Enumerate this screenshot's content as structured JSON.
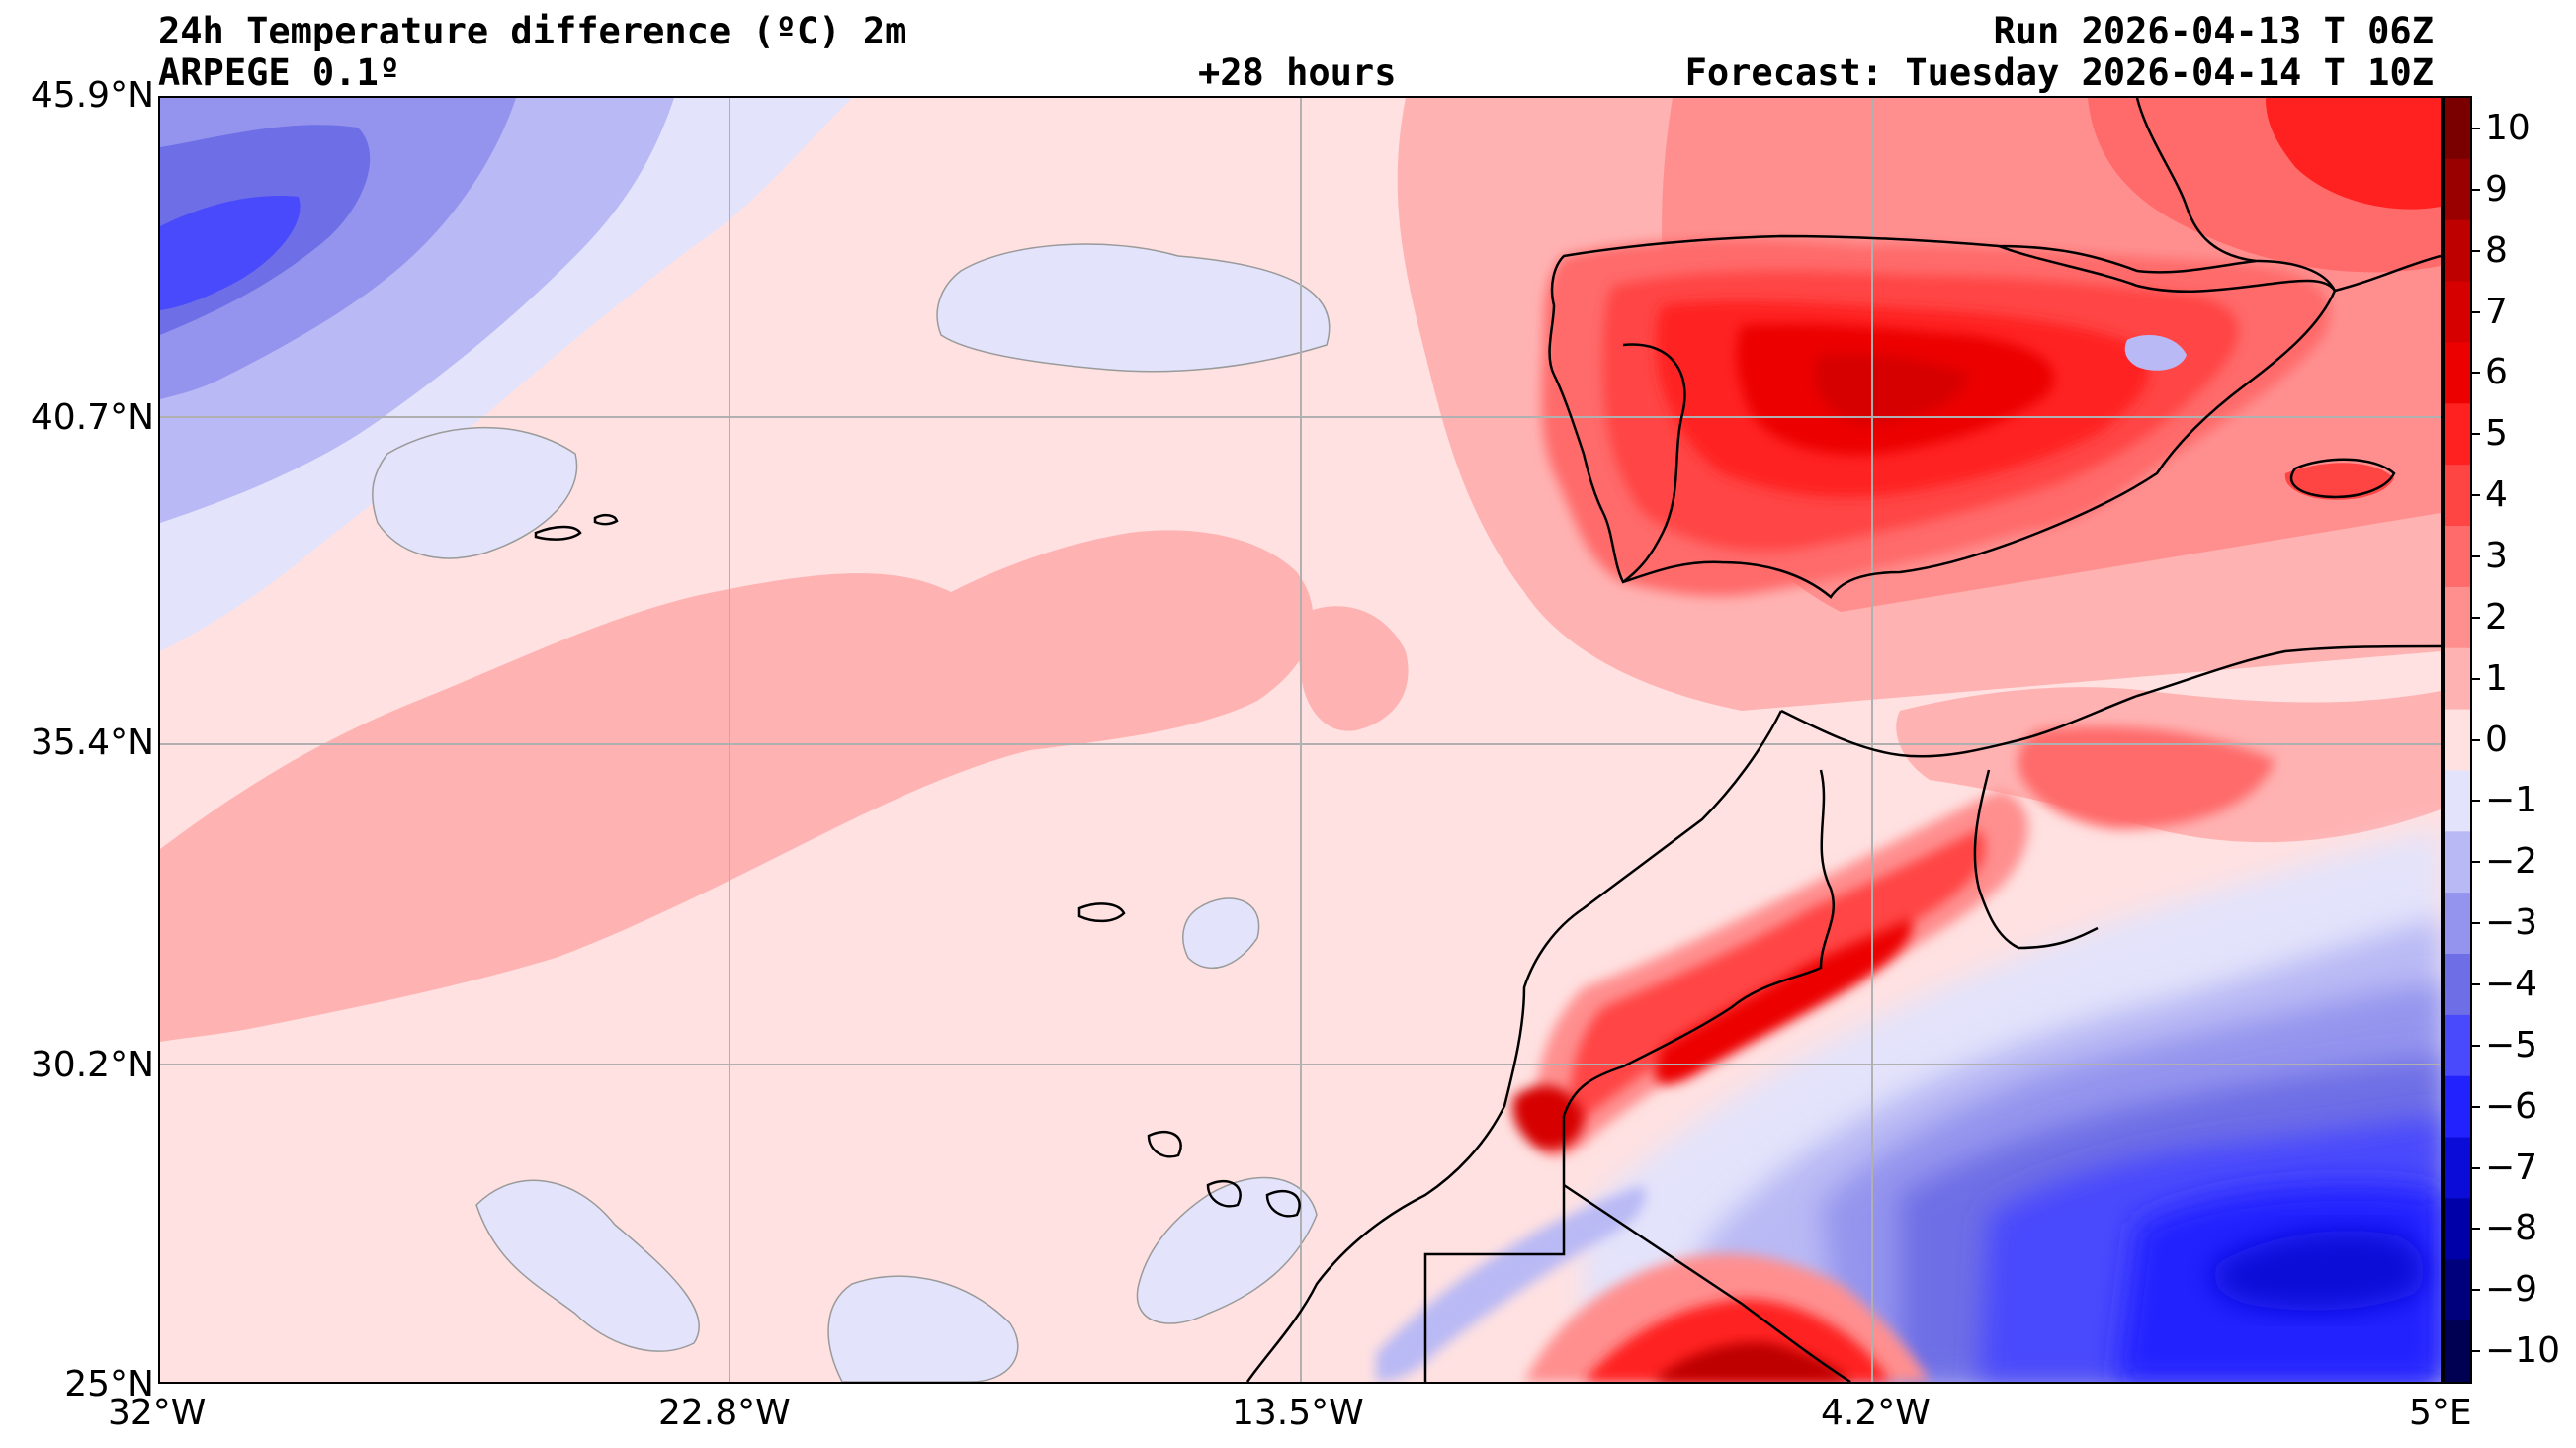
{
  "header": {
    "title": "24h Temperature difference (ºC) 2m",
    "model": "ARPEGE 0.1º",
    "lead_time": "+28 hours",
    "run": "Run 2026-04-13 T 06Z",
    "forecast": "Forecast: Tuesday 2026-04-14 T 10Z"
  },
  "axes": {
    "lat_labels": [
      "45.9°N",
      "40.7°N",
      "35.4°N",
      "30.2°N",
      "25°N"
    ],
    "lon_labels": [
      "32°W",
      "22.8°W",
      "13.5°W",
      "4.2°W",
      "5°E"
    ]
  },
  "colorbar": {
    "ticks": [
      "10",
      "9",
      "8",
      "7",
      "6",
      "5",
      "4",
      "3",
      "2",
      "1",
      "0",
      "−1",
      "−2",
      "−3",
      "−4",
      "−5",
      "−6",
      "−7",
      "−8",
      "−9",
      "−10"
    ],
    "levels_top_to_bottom": [
      "#7a0000",
      "#9a0000",
      "#be0000",
      "#d60000",
      "#ec0000",
      "#ff2020",
      "#ff4444",
      "#ff6a6a",
      "#ff8f8f",
      "#ffb2b2",
      "#ffe1e1",
      "#e3e3fb",
      "#b9b9f5",
      "#9494ee",
      "#6e6ee6",
      "#4a4afd",
      "#2222ff",
      "#0c0cd8",
      "#0000a8",
      "#00007c",
      "#000052"
    ]
  },
  "colors": {
    "land_line": "#000000",
    "grid": "#b0b0b0",
    "ocean_base": "#ffe1e1"
  }
}
